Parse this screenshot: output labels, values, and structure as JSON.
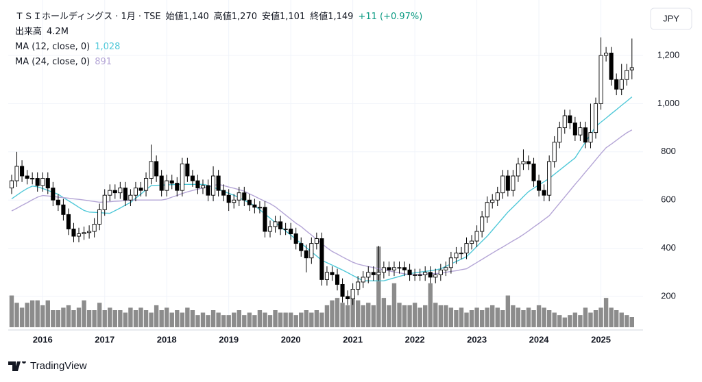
{
  "chart_data": {
    "type": "candlestick",
    "header": [
      "ＴＳＩホールディングス · 1月 · TSE",
      "始値1,140",
      "高値1,270",
      "安値1,101",
      "終値1,149",
      "+11 (+0.97%)"
    ],
    "currency": "JPY",
    "categories": [
      null,
      null,
      null,
      null,
      null,
      null,
      "2016",
      null,
      null,
      null,
      null,
      null,
      null,
      null,
      null,
      null,
      null,
      null,
      "2017",
      null,
      null,
      null,
      null,
      null,
      null,
      null,
      null,
      null,
      null,
      null,
      "2018",
      null,
      null,
      null,
      null,
      null,
      null,
      null,
      null,
      null,
      null,
      null,
      "2019",
      null,
      null,
      null,
      null,
      null,
      null,
      null,
      null,
      null,
      null,
      null,
      "2020",
      null,
      null,
      null,
      null,
      null,
      null,
      null,
      null,
      null,
      null,
      null,
      "2021",
      null,
      null,
      null,
      null,
      null,
      null,
      null,
      null,
      null,
      null,
      null,
      "2022",
      null,
      null,
      null,
      null,
      null,
      null,
      null,
      null,
      null,
      null,
      null,
      "2023",
      null,
      null,
      null,
      null,
      null,
      null,
      null,
      null,
      null,
      null,
      null,
      "2024",
      null,
      null,
      null,
      null,
      null,
      null,
      null,
      null,
      null,
      null,
      null,
      "2025",
      null,
      null,
      null,
      null,
      null,
      null
    ],
    "open": [
      650,
      680,
      740,
      700,
      690,
      690,
      660,
      690,
      650,
      600,
      580,
      540,
      480,
      450,
      460,
      465,
      470,
      500,
      560,
      620,
      640,
      630,
      650,
      600,
      620,
      650,
      640,
      690,
      760,
      700,
      640,
      680,
      670,
      640,
      750,
      700,
      680,
      650,
      660,
      620,
      700,
      640,
      620,
      590,
      600,
      630,
      600,
      580,
      570,
      570,
      470,
      490,
      510,
      480,
      480,
      460,
      420,
      390,
      360,
      420,
      440,
      270,
      300,
      290,
      250,
      200,
      190,
      230,
      260,
      280,
      300,
      290,
      300,
      320,
      310,
      320,
      320,
      310,
      290,
      290,
      290,
      300,
      280,
      290,
      310,
      320,
      360,
      380,
      380,
      420,
      430,
      470,
      530,
      590,
      600,
      630,
      700,
      640,
      700,
      750,
      760,
      750,
      680,
      640,
      620,
      760,
      840,
      900,
      950,
      920,
      870,
      900,
      840,
      880,
      1000,
      1200,
      1210,
      1100,
      1060,
      1100,
      1140
    ],
    "high": [
      705,
      800,
      765,
      725,
      715,
      715,
      715,
      715,
      675,
      625,
      605,
      565,
      505,
      485,
      490,
      495,
      525,
      585,
      645,
      665,
      665,
      675,
      675,
      645,
      675,
      675,
      715,
      830,
      785,
      725,
      705,
      705,
      695,
      775,
      775,
      725,
      705,
      685,
      685,
      740,
      725,
      665,
      645,
      625,
      655,
      655,
      625,
      605,
      595,
      595,
      515,
      535,
      535,
      505,
      505,
      485,
      445,
      415,
      445,
      465,
      465,
      325,
      325,
      315,
      275,
      225,
      255,
      285,
      305,
      325,
      325,
      410,
      345,
      345,
      345,
      345,
      345,
      335,
      315,
      315,
      325,
      325,
      315,
      335,
      345,
      385,
      405,
      405,
      445,
      455,
      495,
      555,
      615,
      625,
      655,
      725,
      725,
      725,
      775,
      810,
      785,
      775,
      705,
      665,
      785,
      865,
      925,
      975,
      975,
      945,
      925,
      925,
      1000,
      1025,
      1275,
      1235,
      1235,
      1125,
      1165,
      1165,
      1270
    ],
    "low": [
      625,
      655,
      675,
      665,
      665,
      635,
      635,
      625,
      575,
      555,
      515,
      455,
      425,
      425,
      435,
      440,
      445,
      475,
      535,
      595,
      605,
      605,
      575,
      575,
      595,
      615,
      615,
      665,
      675,
      615,
      615,
      645,
      615,
      615,
      675,
      655,
      625,
      625,
      595,
      595,
      615,
      595,
      555,
      565,
      575,
      575,
      555,
      545,
      545,
      445,
      445,
      465,
      455,
      455,
      435,
      395,
      365,
      300,
      335,
      395,
      245,
      245,
      265,
      225,
      175,
      165,
      165,
      205,
      235,
      255,
      265,
      265,
      275,
      285,
      285,
      295,
      285,
      265,
      265,
      265,
      265,
      255,
      255,
      265,
      285,
      295,
      335,
      355,
      355,
      395,
      405,
      445,
      505,
      565,
      575,
      605,
      615,
      615,
      675,
      725,
      725,
      655,
      615,
      595,
      595,
      735,
      815,
      875,
      895,
      845,
      845,
      815,
      815,
      855,
      975,
      1175,
      1075,
      1035,
      1035,
      1075,
      1101
    ],
    "close": [
      680,
      740,
      700,
      690,
      690,
      660,
      690,
      650,
      600,
      580,
      540,
      480,
      450,
      460,
      465,
      470,
      500,
      560,
      620,
      640,
      630,
      650,
      600,
      620,
      650,
      640,
      690,
      760,
      700,
      640,
      680,
      670,
      640,
      750,
      700,
      680,
      650,
      660,
      620,
      700,
      640,
      620,
      590,
      600,
      630,
      600,
      580,
      570,
      570,
      470,
      490,
      510,
      480,
      480,
      460,
      420,
      390,
      360,
      420,
      440,
      270,
      300,
      290,
      250,
      200,
      190,
      230,
      260,
      280,
      300,
      290,
      300,
      320,
      310,
      320,
      320,
      310,
      290,
      290,
      290,
      300,
      280,
      290,
      310,
      320,
      360,
      380,
      380,
      420,
      430,
      470,
      530,
      590,
      600,
      630,
      700,
      640,
      700,
      750,
      760,
      750,
      680,
      640,
      620,
      760,
      840,
      900,
      950,
      920,
      870,
      900,
      840,
      880,
      1000,
      1200,
      1210,
      1100,
      1060,
      1100,
      1138,
      1149
    ],
    "up_color": "#ffffff",
    "down_color": "#000000",
    "volume": {
      "name": "出来高",
      "value_label": "4.2M",
      "color": "#808080",
      "values": [
        13,
        10,
        8,
        10,
        11,
        11,
        9,
        11,
        7,
        7,
        8,
        9,
        7,
        8,
        11,
        7,
        7,
        10,
        7,
        8,
        7,
        7,
        6,
        8,
        7,
        8,
        7,
        6,
        9,
        7,
        8,
        6,
        7,
        6,
        8,
        7,
        5,
        6,
        5,
        7,
        6,
        5,
        5,
        6,
        7,
        5,
        6,
        5,
        7,
        6,
        5,
        7,
        6,
        6,
        6,
        5,
        6,
        7,
        6,
        7,
        6,
        9,
        11,
        12,
        10,
        9,
        13,
        11,
        9,
        10,
        9,
        33,
        12,
        9,
        18,
        10,
        9,
        9,
        10,
        8,
        9,
        18,
        10,
        9,
        9,
        8,
        7,
        8,
        6,
        7,
        8,
        7,
        8,
        9,
        8,
        7,
        13,
        9,
        8,
        7,
        8,
        7,
        9,
        8,
        7,
        6,
        5,
        4,
        5,
        6,
        5,
        8,
        6,
        7,
        8,
        12,
        8,
        7,
        6,
        5,
        4.2
      ]
    },
    "ma": [
      {
        "name": "MA (12, close, 0)",
        "last_label": "1,028",
        "color": "#4fc8d8",
        "values": [
          605,
          620,
          635,
          648,
          658,
          655,
          648,
          640,
          632,
          624,
          610,
          597,
          584,
          570,
          557,
          550,
          549,
          548,
          546,
          545,
          556,
          567,
          579,
          590,
          608,
          625,
          643,
          660,
          661,
          662,
          663,
          664,
          665,
          665,
          665,
          665,
          665,
          665,
          661,
          653,
          645,
          636,
          628,
          620,
          610,
          599,
          588,
          577,
          560,
          542,
          525,
          507,
          490,
          472,
          455,
          437,
          420,
          403,
          385,
          368,
          350,
          340,
          330,
          320,
          310,
          299,
          287,
          276,
          265,
          265,
          265,
          265,
          265,
          271,
          277,
          283,
          289,
          295,
          298,
          301,
          304,
          307,
          310,
          315,
          325,
          335,
          345,
          355,
          365,
          386,
          408,
          429,
          450,
          475,
          500,
          525,
          550,
          571,
          592,
          614,
          635,
          649,
          663,
          676,
          690,
          707,
          724,
          741,
          758,
          775,
          808,
          840,
          873,
          905,
          923,
          940,
          958,
          975,
          993,
          1010,
          1028
        ]
      },
      {
        "name": "MA (24, close, 0)",
        "last_label": "891",
        "color": "#b4a5d6",
        "values": [
          555,
          566,
          578,
          589,
          601,
          612,
          619,
          617,
          615,
          612,
          610,
          608,
          605,
          603,
          600,
          597,
          594,
          591,
          592,
          593,
          595,
          596,
          598,
          599,
          600,
          600,
          600,
          600,
          600,
          600,
          604,
          612,
          619,
          627,
          634,
          640,
          645,
          650,
          655,
          660,
          665,
          660,
          654,
          649,
          643,
          637,
          626,
          616,
          605,
          595,
          585,
          572,
          555,
          538,
          521,
          504,
          490,
          472,
          455,
          437,
          419,
          402,
          387,
          376,
          364,
          353,
          342,
          334,
          329,
          324,
          320,
          315,
          310,
          306,
          302,
          298,
          294,
          290,
          291,
          292,
          293,
          294,
          295,
          296,
          300,
          304,
          307,
          311,
          315,
          328,
          341,
          354,
          367,
          380,
          393,
          405,
          418,
          431,
          443,
          457,
          472,
          488,
          503,
          519,
          535,
          561,
          587,
          613,
          639,
          665,
          690,
          716,
          741,
          767,
          793,
          817,
          832,
          848,
          864,
          879,
          891
        ]
      }
    ],
    "ylim": [
      61,
      1430
    ],
    "yticks": [
      200,
      400,
      600,
      800,
      {
        "value": 1000,
        "label": "1,000"
      },
      {
        "value": 1200,
        "label": "1,200"
      }
    ],
    "grid": true
  },
  "brand": "TradingView"
}
